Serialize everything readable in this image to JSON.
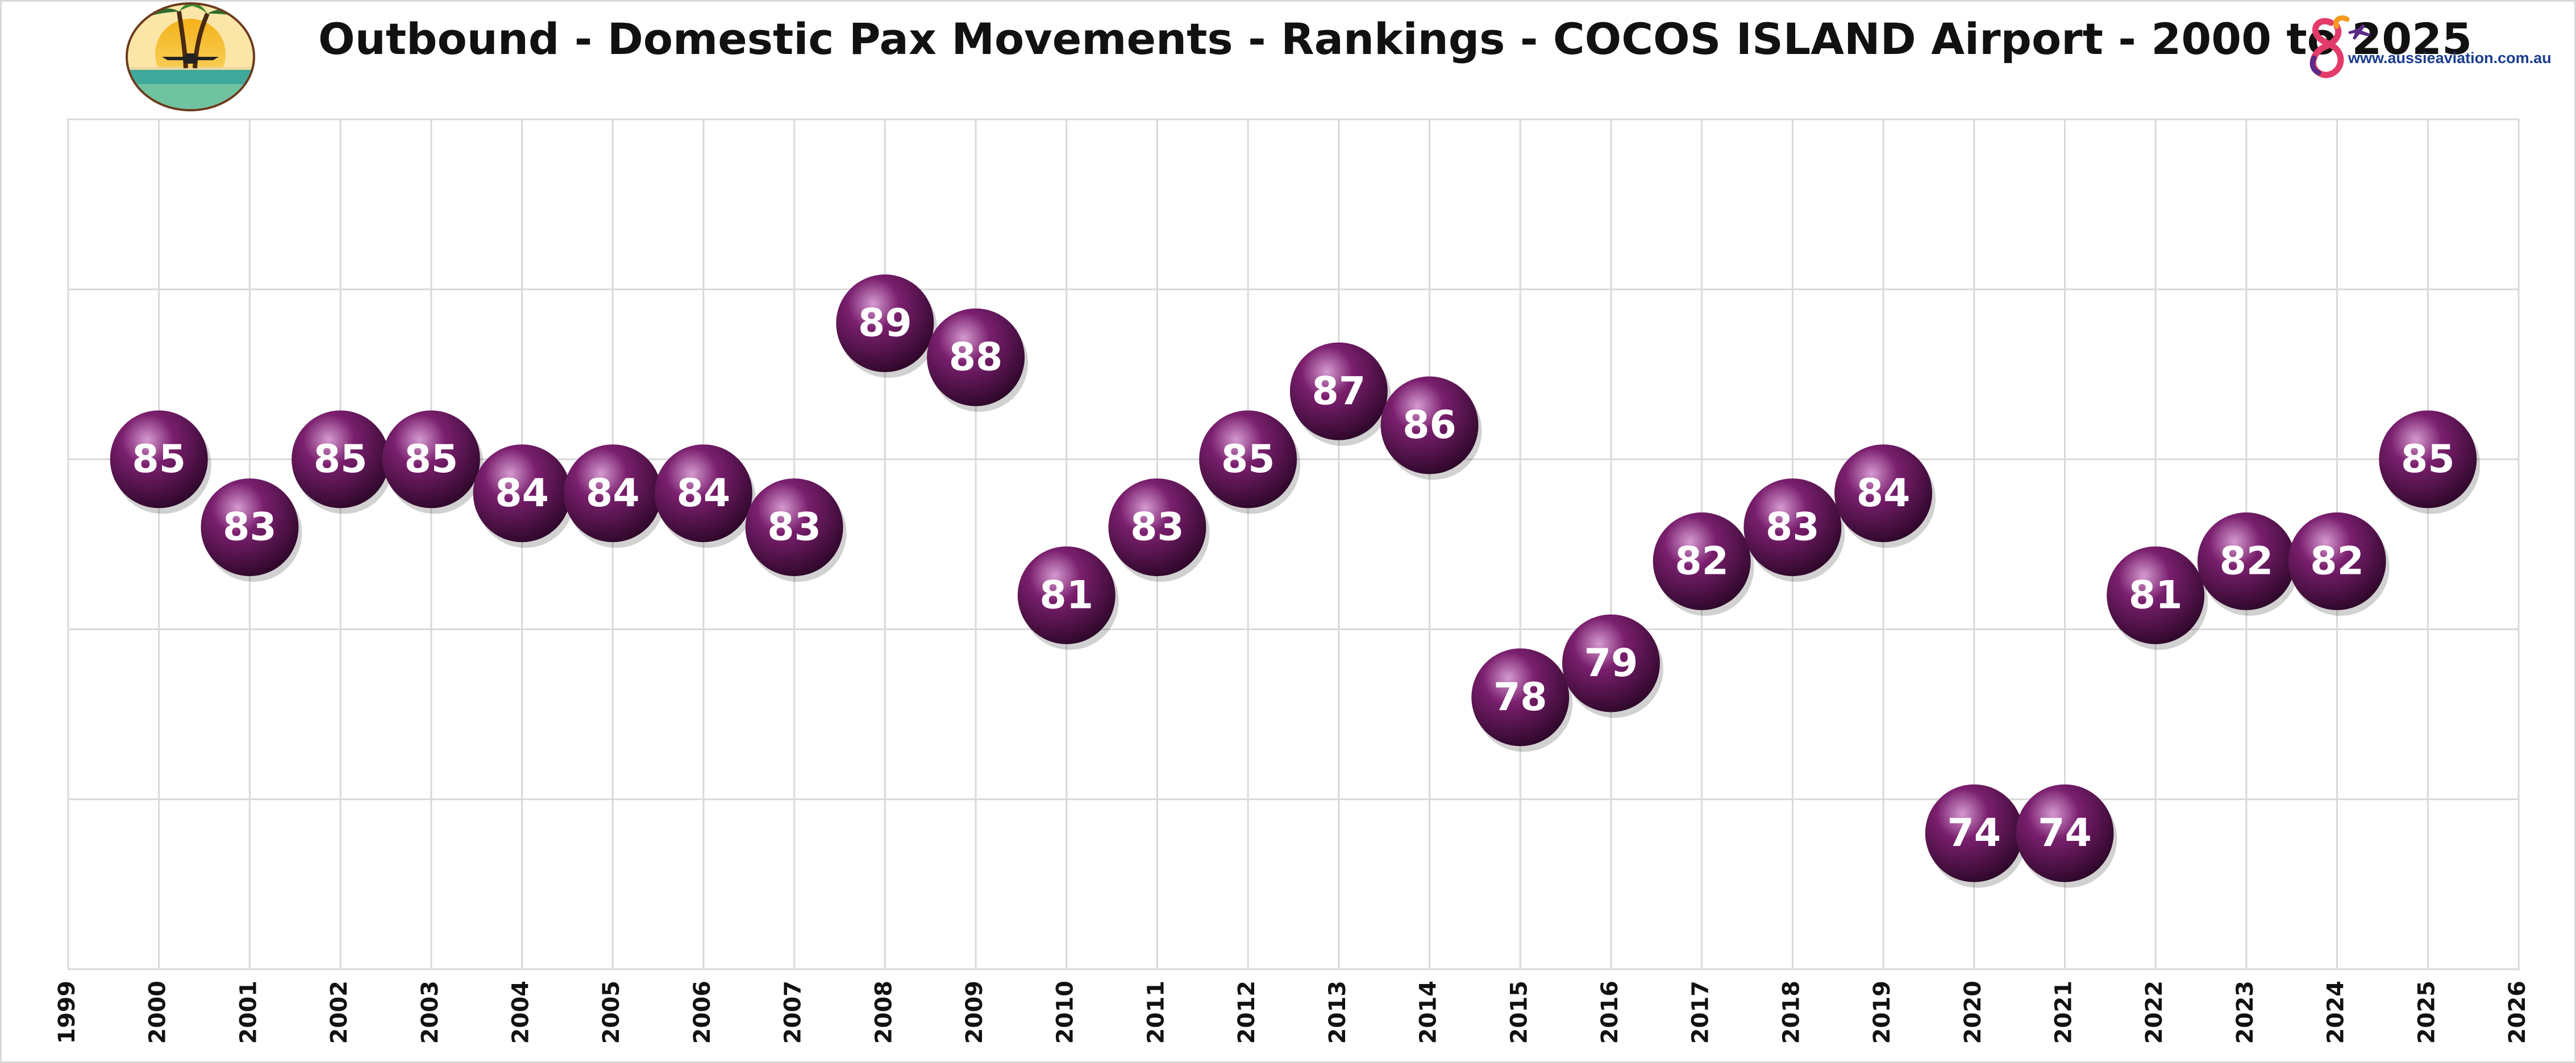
{
  "title": "Outbound  - Domestic Pax Movements - Rankings - COCOS ISLAND Airport - 2000 to 2025",
  "logo_right": {
    "url_text": "www.aussieaviation.com.au",
    "name": "aussieaviation-logo-icon"
  },
  "logo_left": {
    "name": "cocos-island-badge-icon"
  },
  "colors": {
    "bubble_dark": "#3a0834",
    "bubble_mid": "#7a1f6e",
    "bubble_light": "#d59ad0",
    "grid": "#d9d9d9"
  },
  "chart_data": {
    "type": "scatter",
    "title": "Outbound  - Domestic Pax Movements - Rankings - COCOS ISLAND Airport - 2000 to 2025",
    "xlabel": "",
    "ylabel": "",
    "xlim": [
      1999,
      2026
    ],
    "ylim": [
      70,
      95
    ],
    "y_gridlines": [
      75,
      80,
      85,
      90,
      95
    ],
    "x_ticks": [
      1999,
      2000,
      2001,
      2002,
      2003,
      2004,
      2005,
      2006,
      2007,
      2008,
      2009,
      2010,
      2011,
      2012,
      2013,
      2014,
      2015,
      2016,
      2017,
      2018,
      2019,
      2020,
      2021,
      2022,
      2023,
      2024,
      2025,
      2026
    ],
    "y_tick_labels_shown": false,
    "grid": true,
    "legend": "none",
    "data_labels": true,
    "points": [
      {
        "x": 2000,
        "y": 85
      },
      {
        "x": 2001,
        "y": 83
      },
      {
        "x": 2002,
        "y": 85
      },
      {
        "x": 2003,
        "y": 85
      },
      {
        "x": 2004,
        "y": 84
      },
      {
        "x": 2005,
        "y": 84
      },
      {
        "x": 2006,
        "y": 84
      },
      {
        "x": 2007,
        "y": 83
      },
      {
        "x": 2008,
        "y": 89
      },
      {
        "x": 2009,
        "y": 88
      },
      {
        "x": 2010,
        "y": 81
      },
      {
        "x": 2011,
        "y": 83
      },
      {
        "x": 2012,
        "y": 85
      },
      {
        "x": 2013,
        "y": 87
      },
      {
        "x": 2014,
        "y": 86
      },
      {
        "x": 2015,
        "y": 78
      },
      {
        "x": 2016,
        "y": 79
      },
      {
        "x": 2017,
        "y": 82
      },
      {
        "x": 2018,
        "y": 83
      },
      {
        "x": 2019,
        "y": 84
      },
      {
        "x": 2020,
        "y": 74
      },
      {
        "x": 2021,
        "y": 74
      },
      {
        "x": 2022,
        "y": 81
      },
      {
        "x": 2023,
        "y": 82
      },
      {
        "x": 2024,
        "y": 82
      },
      {
        "x": 2025,
        "y": 85
      }
    ]
  }
}
